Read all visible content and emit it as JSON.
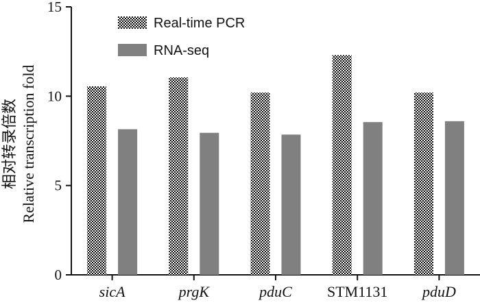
{
  "chart_data": {
    "type": "bar",
    "categories": [
      "sicA",
      "prgK",
      "pduC",
      "STM1131",
      "pduD"
    ],
    "italic_categories": [
      "sicA",
      "prgK",
      "pduC",
      "pduD"
    ],
    "series": [
      {
        "name": "Real-time PCR",
        "values": [
          10.55,
          11.05,
          10.2,
          12.3,
          10.2
        ],
        "pattern": "checkerboard",
        "color": "#000000"
      },
      {
        "name": "RNA-seq",
        "values": [
          8.15,
          7.95,
          7.85,
          8.55,
          8.6
        ],
        "pattern": "solid",
        "color": "#808080"
      }
    ],
    "ylabel_zh": "相对转录倍数",
    "ylabel": "Relative transcription fold",
    "xlabel": "",
    "ylim": [
      0,
      15
    ],
    "yticks": [
      0,
      5,
      10,
      15
    ],
    "grid": false,
    "legend_position": "top-left"
  }
}
